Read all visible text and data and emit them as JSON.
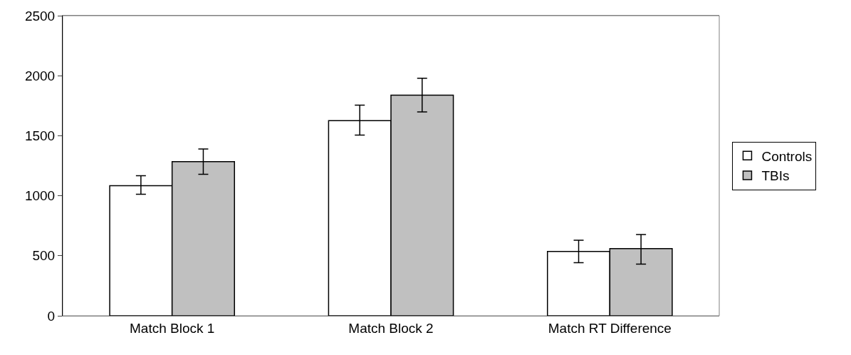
{
  "chart_data": {
    "type": "bar",
    "categories": [
      "Match Block 1",
      "Match Block 2",
      "Match RT Difference"
    ],
    "series": [
      {
        "name": "Controls",
        "color": "#ffffff",
        "values": [
          1083,
          1625,
          536
        ],
        "errors": [
          [
            1013,
            1167
          ],
          [
            1505,
            1755
          ],
          [
            442,
            630
          ]
        ]
      },
      {
        "name": "TBIs",
        "color": "#c0c0c0",
        "values": [
          1284,
          1838,
          559
        ],
        "errors": [
          [
            1178,
            1390
          ],
          [
            1699,
            1979
          ],
          [
            430,
            677
          ]
        ]
      }
    ],
    "ylim": [
      0,
      2500
    ],
    "yticks": [
      0,
      500,
      1000,
      1500,
      2000,
      2500
    ],
    "grid": false,
    "legend": "right"
  }
}
